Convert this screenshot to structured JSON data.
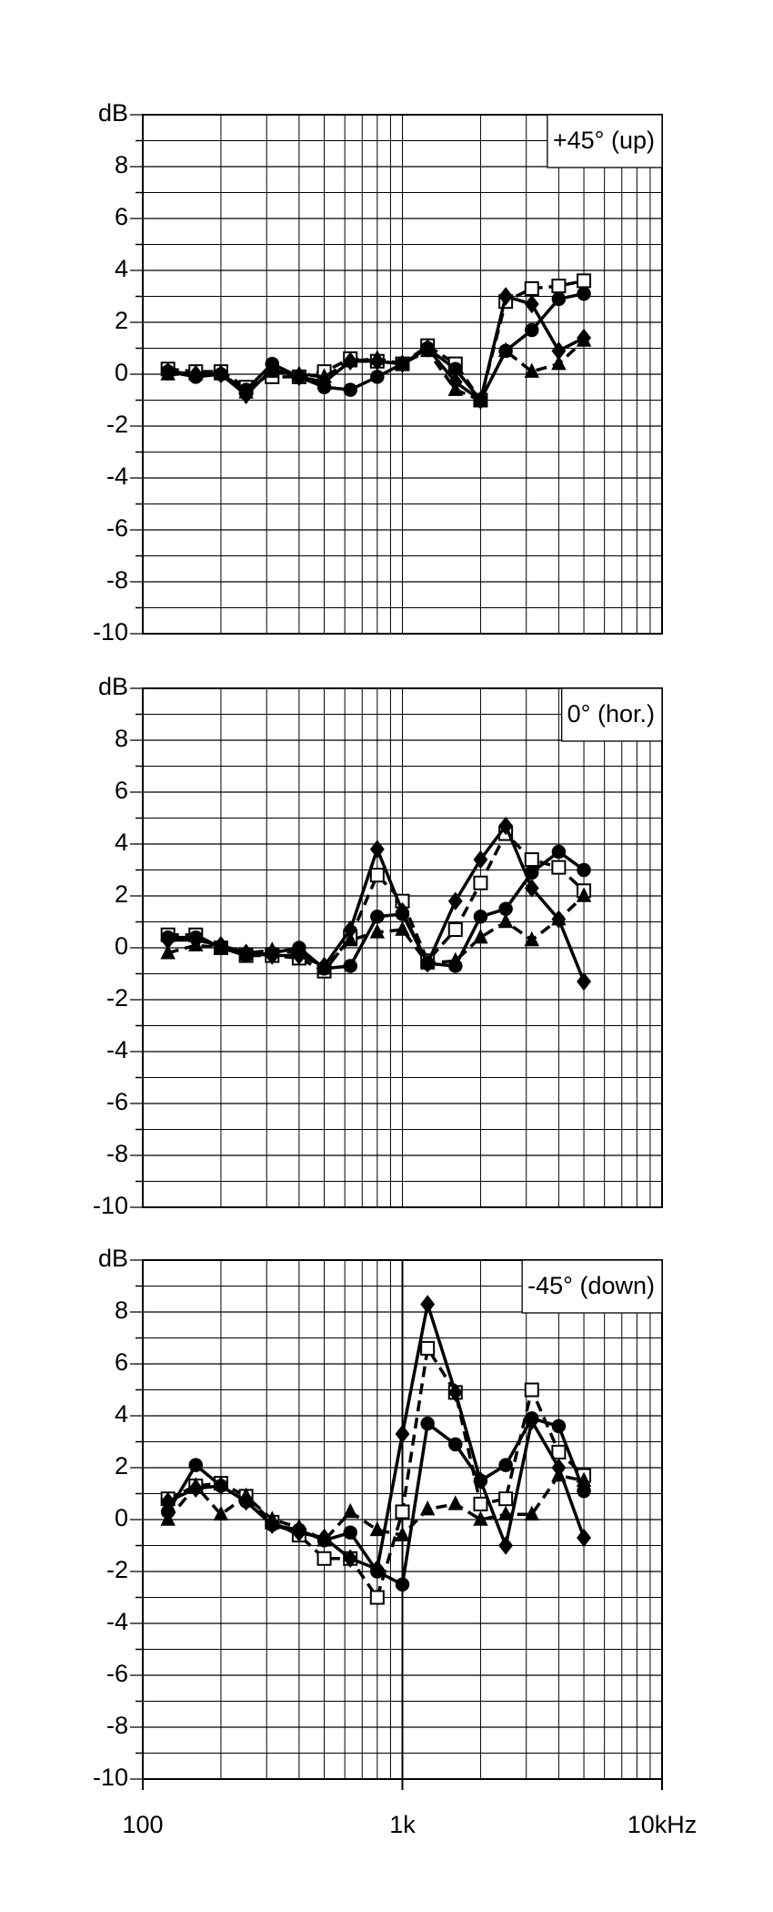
{
  "chart_data": [
    {
      "type": "line",
      "annotation": "+45° (up)",
      "log_x": true,
      "grid": true,
      "xlim": [
        100,
        10000
      ],
      "ylim": [
        -10,
        10
      ],
      "yticks": [
        -10,
        -8,
        -6,
        -4,
        -2,
        0,
        2,
        4,
        6,
        8,
        {
          "value": 10,
          "label": "dB"
        }
      ],
      "x": [
        125,
        160,
        200,
        250,
        315,
        400,
        500,
        630,
        800,
        1000,
        1250,
        1600,
        2000,
        2500,
        3150,
        4000,
        5000
      ],
      "series": [
        {
          "color": "#000000",
          "marker": "square",
          "dashed": true,
          "values": [
            0.2,
            0.1,
            0.1,
            -0.5,
            -0.1,
            -0.1,
            0.1,
            0.6,
            0.5,
            0.4,
            1.1,
            0.4,
            -1,
            2.8,
            3.3,
            3.4,
            3.6
          ]
        },
        {
          "color": "#000000",
          "marker": "triangle",
          "dashed": true,
          "values": [
            0,
            0,
            0,
            -0.7,
            0.1,
            0,
            -0.1,
            0.5,
            0.6,
            0.4,
            0.9,
            -0.6,
            -1,
            0.9,
            0.1,
            0.4,
            1.3
          ]
        },
        {
          "color": "#000000",
          "marker": "diamond",
          "dashed": false,
          "values": [
            0.1,
            0,
            0,
            -0.8,
            0.2,
            -0.1,
            -0.3,
            0.5,
            0.5,
            0.4,
            1,
            -0.3,
            -1,
            3,
            2.7,
            0.9,
            1.4
          ]
        },
        {
          "color": "#000000",
          "marker": "circle",
          "dashed": false,
          "values": [
            0.1,
            -0.1,
            0,
            -0.6,
            0.4,
            -0.1,
            -0.5,
            -0.6,
            -0.1,
            0.4,
            1,
            0.2,
            -1,
            0.9,
            1.7,
            2.9,
            3.1
          ]
        }
      ]
    },
    {
      "type": "line",
      "annotation": "0°  (hor.)",
      "log_x": true,
      "grid": true,
      "xlim": [
        100,
        10000
      ],
      "ylim": [
        -10,
        10
      ],
      "yticks": [
        -10,
        -8,
        -6,
        -4,
        -2,
        0,
        2,
        4,
        6,
        8,
        {
          "value": 10,
          "label": "dB"
        }
      ],
      "x": [
        125,
        160,
        200,
        250,
        315,
        400,
        500,
        630,
        800,
        1000,
        1250,
        1600,
        2000,
        2500,
        3150,
        4000,
        5000
      ],
      "series": [
        {
          "color": "#000000",
          "marker": "square",
          "dashed": true,
          "values": [
            0.5,
            0.5,
            0,
            -0.3,
            -0.3,
            -0.4,
            -0.9,
            0.4,
            2.8,
            1.8,
            -0.5,
            0.7,
            2.5,
            4.4,
            3.4,
            3.1,
            2.2
          ]
        },
        {
          "color": "#000000",
          "marker": "triangle",
          "dashed": true,
          "values": [
            -0.2,
            0.1,
            0,
            -0.2,
            -0.1,
            -0.2,
            -0.8,
            0.3,
            0.6,
            0.7,
            -0.6,
            -0.5,
            0.4,
            1,
            0.3,
            1.1,
            2
          ]
        },
        {
          "color": "#000000",
          "marker": "diamond",
          "dashed": false,
          "values": [
            0.3,
            0.3,
            0.1,
            -0.2,
            -0.3,
            -0.3,
            -0.7,
            0.7,
            3.8,
            1.4,
            -0.6,
            1.8,
            3.4,
            4.7,
            2.3,
            1.1,
            -1.3
          ]
        },
        {
          "color": "#000000",
          "marker": "circle",
          "dashed": false,
          "values": [
            0.4,
            0.4,
            0,
            -0.3,
            -0.2,
            0,
            -0.8,
            -0.7,
            1.2,
            1.3,
            -0.6,
            -0.7,
            1.2,
            1.5,
            2.9,
            3.7,
            3
          ]
        }
      ]
    },
    {
      "type": "line",
      "annotation": "-45° (down)",
      "log_x": true,
      "grid": true,
      "xlim": [
        100,
        10000
      ],
      "ylim": [
        -10,
        10
      ],
      "xticks": [
        100,
        {
          "value": 1000,
          "label": "1k"
        },
        {
          "value": 10000,
          "label": "10kHz"
        }
      ],
      "yticks": [
        -10,
        -8,
        -6,
        -4,
        -2,
        0,
        2,
        4,
        6,
        8,
        {
          "value": 10,
          "label": "dB"
        }
      ],
      "x": [
        125,
        160,
        200,
        250,
        315,
        400,
        500,
        630,
        800,
        1000,
        1250,
        1600,
        2000,
        2500,
        3150,
        4000,
        5000
      ],
      "series": [
        {
          "color": "#000000",
          "marker": "square",
          "dashed": true,
          "values": [
            0.8,
            1.3,
            1.4,
            0.9,
            -0.1,
            -0.6,
            -1.5,
            -1.5,
            -3,
            0.3,
            6.6,
            4.9,
            0.6,
            0.8,
            5,
            2.6,
            1.7
          ]
        },
        {
          "color": "#000000",
          "marker": "triangle",
          "dashed": true,
          "values": [
            0,
            1.3,
            0.2,
            0.9,
            0,
            -0.3,
            -0.8,
            0.3,
            -0.4,
            -0.6,
            0.4,
            0.6,
            0,
            0.2,
            0.2,
            1.7,
            1.5
          ]
        },
        {
          "color": "#000000",
          "marker": "diamond",
          "dashed": false,
          "values": [
            0.7,
            1.2,
            1.3,
            0.7,
            -0.2,
            -0.5,
            -0.7,
            -1.5,
            -1.9,
            3.3,
            8.3,
            4.9,
            1.5,
            -1,
            3.8,
            2,
            -0.7
          ]
        },
        {
          "color": "#000000",
          "marker": "circle",
          "dashed": false,
          "values": [
            0.3,
            2.1,
            1.3,
            0.7,
            -0.2,
            -0.4,
            -0.8,
            -0.5,
            -2,
            -2.5,
            3.7,
            2.9,
            1.5,
            2.1,
            3.9,
            3.6,
            1.1
          ]
        }
      ]
    }
  ]
}
